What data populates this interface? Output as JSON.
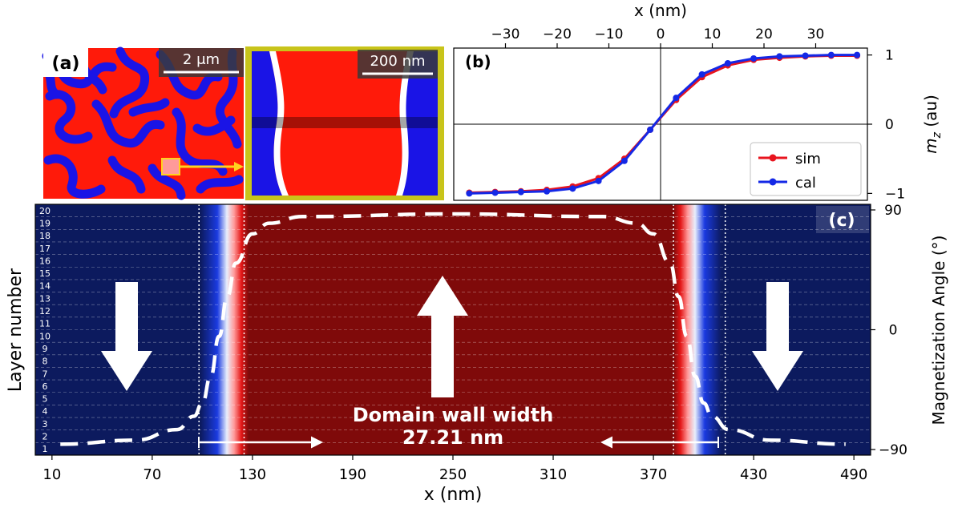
{
  "panel_a": {
    "label": "(a)",
    "scalebar_left": "2 μm",
    "scalebar_right": "200 nm",
    "colors": {
      "red": "#ff1a0a",
      "blue": "#1a14e6",
      "frame": "#c8c41a",
      "arrow": "#ffd21e"
    }
  },
  "panel_b": {
    "label": "(b)",
    "top_axis_label": "x  (nm)",
    "right_axis_label_main": "m",
    "right_axis_label_sub": "z",
    "right_axis_label_unit": " (au)",
    "legend": {
      "sim": "sim",
      "cal": "cal"
    }
  },
  "panel_c": {
    "label": "(c)",
    "xlabel": "x  (nm)",
    "ylabel_left": "Layer number",
    "ylabel_right": "Magnetization Angle (°)",
    "annotation_line1": "Domain wall width",
    "annotation_line2": "27.21 nm",
    "colors": {
      "dark_blue": "#0c1a5e",
      "dark_red": "#7f0a0a"
    }
  },
  "chart_data": [
    {
      "type": "line",
      "panel": "b",
      "xlim": [
        -40,
        40
      ],
      "ylim": [
        -1.1,
        1.1
      ],
      "xticks": [
        -30,
        -20,
        -10,
        0,
        10,
        20,
        30
      ],
      "xtick_labels": [
        "−30",
        "−20",
        "−10",
        "0",
        "10",
        "20",
        "30"
      ],
      "yticks": [
        -1,
        0,
        1
      ],
      "ytick_labels": [
        "−1",
        "0",
        "1"
      ],
      "legend_position": "lower-right",
      "series": [
        {
          "name": "sim",
          "color": "#e8141e",
          "x": [
            -37,
            -32,
            -27,
            -22,
            -17,
            -12,
            -7,
            -2,
            3,
            8,
            13,
            18,
            23,
            28,
            33,
            38
          ],
          "y": [
            -0.99,
            -0.98,
            -0.97,
            -0.95,
            -0.9,
            -0.78,
            -0.5,
            -0.08,
            0.35,
            0.68,
            0.85,
            0.93,
            0.96,
            0.98,
            0.99,
            0.99
          ]
        },
        {
          "name": "cal",
          "color": "#1428e6",
          "x": [
            -37,
            -32,
            -27,
            -22,
            -17,
            -12,
            -7,
            -2,
            3,
            8,
            13,
            18,
            23,
            28,
            33,
            38
          ],
          "y": [
            -1.0,
            -0.99,
            -0.98,
            -0.97,
            -0.93,
            -0.82,
            -0.53,
            -0.08,
            0.38,
            0.72,
            0.88,
            0.95,
            0.98,
            0.99,
            1.0,
            1.0
          ]
        }
      ]
    },
    {
      "type": "line",
      "panel": "c",
      "xlim": [
        0,
        500
      ],
      "xticks": [
        10,
        70,
        130,
        190,
        250,
        310,
        370,
        430,
        490
      ],
      "layers": [
        "1",
        "2",
        "3",
        "4",
        "5",
        "6",
        "7",
        "8",
        "9",
        "10",
        "11",
        "12",
        "13",
        "14",
        "15",
        "16",
        "17",
        "18",
        "19",
        "20"
      ],
      "right_yticks": [
        -90,
        0,
        90
      ],
      "right_ytick_labels": [
        "−90",
        "0",
        "90"
      ],
      "right_ylim": [
        -90,
        90
      ],
      "series": [
        {
          "name": "",
          "style": "dashed-white",
          "x": [
            15,
            60,
            85,
            95,
            100,
            105,
            110,
            115,
            120,
            130,
            140,
            160,
            250,
            340,
            360,
            370,
            380,
            385,
            390,
            395,
            400,
            405,
            415,
            440,
            485
          ],
          "y": [
            -86,
            -83,
            -75,
            -65,
            -55,
            -35,
            -5,
            25,
            50,
            72,
            80,
            85,
            87,
            85,
            80,
            72,
            50,
            25,
            -5,
            -35,
            -55,
            -65,
            -75,
            -83,
            -86
          ]
        }
      ],
      "wall_bounds_nm": [
        98,
        125,
        382,
        413
      ],
      "arrows": [
        {
          "direction": "down",
          "x_nm": 62
        },
        {
          "direction": "up",
          "x_nm": 250
        },
        {
          "direction": "down",
          "x_nm": 455
        }
      ]
    }
  ]
}
